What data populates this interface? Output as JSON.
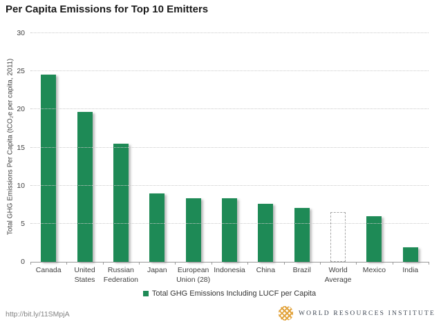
{
  "title": "Per Capita Emissions for Top 10 Emitters",
  "legend": {
    "label": "Total GHG Emissions Including LUCF per Capita",
    "swatch_color": "#1e8a56"
  },
  "footer": {
    "link": "http://bit.ly/11SMpjA",
    "logo_text": "WORLD RESOURCES INSTITUTE",
    "logo_icon": "wri-woven-diamond",
    "logo_gold": "#e2a33c",
    "logo_text_color": "#3d4653"
  },
  "colors": {
    "bar": "#1e8a56",
    "outlined_bar_border": "#a6a6a6",
    "grid": "#c9c9c9",
    "axis": "#9a9a9a",
    "text": "#404040"
  },
  "chart_data": {
    "type": "bar",
    "title": "Per Capita Emissions for Top 10 Emitters",
    "categories": [
      "Canada",
      "United\nStates",
      "Russian\nFederation",
      "Japan",
      "European\nUnion (28)",
      "Indonesia",
      "China",
      "Brazil",
      "World\nAverage",
      "Mexico",
      "India"
    ],
    "values": [
      24.6,
      19.7,
      15.5,
      9.0,
      8.3,
      8.3,
      7.6,
      7.1,
      6.5,
      6.0,
      1.9
    ],
    "series_name": "Total GHG Emissions Including LUCF per Capita",
    "xlabel": "",
    "ylabel": "Total GHG Emissions Per Capita (tCO₂e per capita, 2011)",
    "ylim": [
      0,
      30
    ],
    "ytick_step": 5,
    "yticks": [
      0,
      5,
      10,
      15,
      20,
      25,
      30
    ],
    "grid": "horizontal dotted",
    "legend_position": "bottom",
    "outlined_bar_category": "World\nAverage",
    "outlined_bar_note": "drawn as white bar with dashed outline"
  }
}
